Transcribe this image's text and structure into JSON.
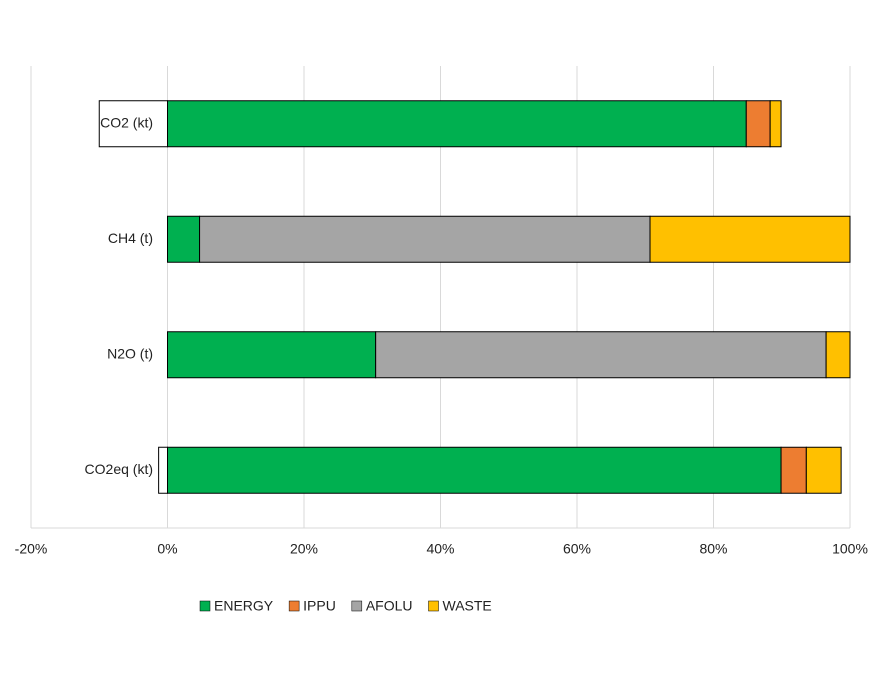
{
  "chart_data": {
    "type": "stacked-barh",
    "categories": [
      "CO2 (kt)",
      "CH4 (t)",
      "N2O (t)",
      "CO2eq (kt)"
    ],
    "series": [
      {
        "name": "ENERGY",
        "color": "#00b050",
        "values": [
          84.8,
          4.7,
          30.5,
          89.9
        ]
      },
      {
        "name": "IPPU",
        "color": "#ed7d31",
        "values": [
          3.5,
          0,
          0,
          3.7
        ]
      },
      {
        "name": "AFOLU",
        "color": "#a5a5a5",
        "values": [
          -10,
          66,
          66,
          -1.3
        ]
      },
      {
        "name": "WASTE",
        "color": "#ffc000",
        "values": [
          1.6,
          29.3,
          3.5,
          5.1
        ]
      }
    ],
    "xlim": [
      -20,
      100
    ],
    "xticks": [
      {
        "value": -20,
        "label": "-20%"
      },
      {
        "value": 0,
        "label": "0%"
      },
      {
        "value": 20,
        "label": "20%"
      },
      {
        "value": 40,
        "label": "40%"
      },
      {
        "value": 60,
        "label": "60%"
      },
      {
        "value": 80,
        "label": "80%"
      },
      {
        "value": 100,
        "label": "100%"
      }
    ],
    "grid": true,
    "invert_if_negative": true,
    "legend": "bottom"
  }
}
